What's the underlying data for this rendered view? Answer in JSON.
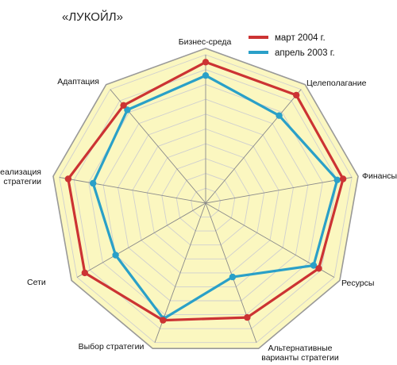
{
  "chart_data": {
    "type": "radar",
    "title": "«ЛУКОЙЛ»",
    "axes": [
      "Бизнес-среда",
      "Целеполагание",
      "Финансы",
      "Ресурсы",
      "Альтернативные варианты стратегии",
      "Выбор стратегии",
      "Сети",
      "Реализация стратегии",
      "Адаптация"
    ],
    "axis_label_lines": [
      [
        "Бизнес-среда"
      ],
      [
        "Целеполагание"
      ],
      [
        "Финансы"
      ],
      [
        "Ресурсы"
      ],
      [
        "Альтернативные",
        "варианты стратегии"
      ],
      [
        "Выбор стратегии"
      ],
      [
        "Сети"
      ],
      [
        "Реализация",
        "стратегии"
      ],
      [
        "Адаптация"
      ]
    ],
    "rmax": 10,
    "grid_levels": 10,
    "series": [
      {
        "name": "март 2004 г.",
        "color": "#cc3333",
        "values": [
          9.5,
          9.5,
          9.4,
          8.8,
          8.2,
          8.4,
          9.4,
          9.4,
          8.6
        ]
      },
      {
        "name": "апрель 2003 г.",
        "color": "#2aa0c8",
        "values": [
          8.6,
          7.7,
          9.0,
          8.4,
          5.3,
          8.3,
          7.0,
          7.7,
          8.2
        ]
      }
    ],
    "colors": {
      "background": "#fbf7c0",
      "frame": "#999999",
      "grid": "#cfcfcf"
    }
  }
}
